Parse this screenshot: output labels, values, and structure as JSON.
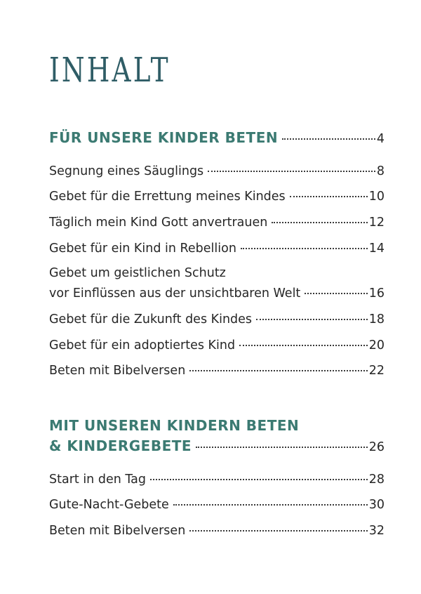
{
  "title": "INHALT",
  "sections": [
    {
      "heading": "FÜR UNSERE KINDER BETEN",
      "page": "4",
      "entries": [
        {
          "label": "Segnung eines Säuglings",
          "page": "8"
        },
        {
          "label": "Gebet für die Errettung meines Kindes",
          "page": "10"
        },
        {
          "label": "Täglich mein Kind Gott anvertrauen",
          "page": "12"
        },
        {
          "label": "Gebet für ein Kind in Rebellion",
          "page": "14"
        },
        {
          "label_line1": "Gebet um geistlichen Schutz",
          "label": "vor Einflüssen aus der unsichtbaren Welt",
          "page": "16"
        },
        {
          "label": "Gebet für die Zukunft des Kindes",
          "page": "18"
        },
        {
          "label": "Gebet für ein adoptiertes Kind",
          "page": "20"
        },
        {
          "label": "Beten mit Bibelversen",
          "page": "22"
        }
      ]
    },
    {
      "heading_line1": "MIT UNSEREN KINDERN BETEN",
      "heading": "& KINDERGEBETE",
      "page": "26",
      "entries": [
        {
          "label": "Start in den Tag",
          "page": "28"
        },
        {
          "label": "Gute-Nacht-Gebete",
          "page": "30"
        },
        {
          "label": "Beten mit Bibelversen",
          "page": "32"
        }
      ]
    }
  ]
}
